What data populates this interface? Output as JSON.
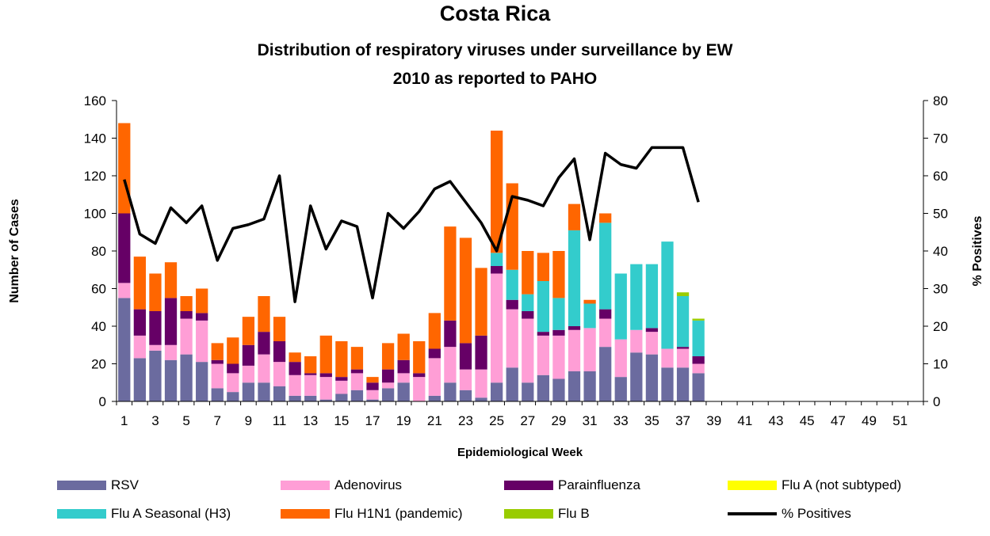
{
  "title": "Costa Rica",
  "subtitle_line1": "Distribution of respiratory viruses under surveillance by EW",
  "subtitle_line2": "2010 as reported to PAHO",
  "colors": {
    "RSV": "#6b6b9f",
    "Adenovirus": "#ff9ed6",
    "Parainfluenza": "#660066",
    "FluA_not_subtyped": "#ffff00",
    "FluA_H3": "#33cccc",
    "FluH1N1": "#ff6600",
    "FluB": "#99cc00",
    "line": "#000000"
  },
  "legend": [
    {
      "key": "RSV",
      "label": "RSV",
      "kind": "box"
    },
    {
      "key": "Adenovirus",
      "label": "Adenovirus",
      "kind": "box"
    },
    {
      "key": "Parainfluenza",
      "label": "Parainfluenza",
      "kind": "box"
    },
    {
      "key": "FluA_not_subtyped",
      "label": "Flu A (not subtyped)",
      "kind": "box"
    },
    {
      "key": "FluA_H3",
      "label": "Flu A Seasonal (H3)",
      "kind": "box"
    },
    {
      "key": "FluH1N1",
      "label": "Flu H1N1 (pandemic)",
      "kind": "box"
    },
    {
      "key": "FluB",
      "label": "Flu B",
      "kind": "box"
    },
    {
      "key": "line",
      "label": "% Positives",
      "kind": "line"
    }
  ],
  "chart_data": {
    "type": "bar",
    "stacked": true,
    "xlabel": "Epidemiological Week",
    "ylabel_left": "Number of Cases",
    "ylabel_right": "% Positives",
    "ylim_left": [
      0,
      160
    ],
    "ylim_right": [
      0,
      80
    ],
    "yticks_left": [
      0,
      20,
      40,
      60,
      80,
      100,
      120,
      140,
      160
    ],
    "yticks_right": [
      0,
      10,
      20,
      30,
      40,
      50,
      60,
      70,
      80
    ],
    "x_tick_labels": [
      "1",
      "3",
      "5",
      "7",
      "9",
      "11",
      "13",
      "15",
      "17",
      "19",
      "21",
      "23",
      "25",
      "27",
      "29",
      "31",
      "33",
      "35",
      "37",
      "39",
      "41",
      "43",
      "45",
      "47",
      "49",
      "51"
    ],
    "weeks": [
      1,
      2,
      3,
      4,
      5,
      6,
      7,
      8,
      9,
      10,
      11,
      12,
      13,
      14,
      15,
      16,
      17,
      18,
      19,
      20,
      21,
      22,
      23,
      24,
      25,
      26,
      27,
      28,
      29,
      30,
      31,
      32,
      33,
      34,
      35,
      36,
      37,
      38,
      39,
      40,
      41,
      42,
      43,
      44,
      45,
      46,
      47,
      48,
      49,
      50,
      51,
      52
    ],
    "series": [
      {
        "name": "RSV",
        "key": "RSV",
        "values": [
          55,
          23,
          27,
          22,
          25,
          21,
          7,
          5,
          10,
          10,
          8,
          3,
          3,
          1,
          4,
          6,
          1,
          7,
          10,
          0,
          3,
          10,
          6,
          2,
          10,
          18,
          10,
          14,
          12,
          16,
          16,
          29,
          13,
          26,
          25,
          18,
          18,
          15,
          0,
          0,
          0,
          0,
          0,
          0,
          0,
          0,
          0,
          0,
          0,
          0,
          0,
          0
        ]
      },
      {
        "name": "Adenovirus",
        "key": "Adenovirus",
        "values": [
          8,
          12,
          3,
          8,
          19,
          22,
          13,
          10,
          9,
          15,
          13,
          11,
          11,
          12,
          7,
          9,
          5,
          3,
          5,
          13,
          20,
          19,
          11,
          15,
          58,
          31,
          34,
          21,
          23,
          22,
          23,
          15,
          20,
          12,
          12,
          10,
          10,
          5,
          0,
          0,
          0,
          0,
          0,
          0,
          0,
          0,
          0,
          0,
          0,
          0,
          0,
          0
        ]
      },
      {
        "name": "Parainfluenza",
        "key": "Parainfluenza",
        "values": [
          37,
          14,
          18,
          25,
          4,
          4,
          2,
          5,
          11,
          12,
          11,
          7,
          1,
          2,
          2,
          2,
          4,
          7,
          7,
          2,
          5,
          14,
          14,
          18,
          4,
          5,
          4,
          2,
          3,
          2,
          0,
          5,
          0,
          0,
          2,
          0,
          1,
          4,
          0,
          0,
          0,
          0,
          0,
          0,
          0,
          0,
          0,
          0,
          0,
          0,
          0,
          0
        ]
      },
      {
        "name": "Flu A (not subtyped)",
        "key": "FluA_not_subtyped",
        "values": [
          0,
          0,
          0,
          0,
          0,
          0,
          0,
          0,
          0,
          0,
          0,
          0,
          0,
          0,
          0,
          0,
          0,
          0,
          0,
          0,
          0,
          0,
          0,
          0,
          0,
          0,
          0,
          0,
          0,
          0,
          0,
          0,
          0,
          0,
          0,
          0,
          0,
          0,
          0,
          0,
          0,
          0,
          0,
          0,
          0,
          0,
          0,
          0,
          0,
          0,
          0,
          0
        ]
      },
      {
        "name": "Flu A Seasonal (H3)",
        "key": "FluA_H3",
        "values": [
          0,
          0,
          0,
          0,
          0,
          0,
          0,
          0,
          0,
          0,
          0,
          0,
          0,
          0,
          0,
          0,
          0,
          0,
          0,
          0,
          0,
          0,
          0,
          0,
          7,
          16,
          9,
          27,
          17,
          51,
          13,
          46,
          35,
          35,
          34,
          57,
          27,
          19,
          0,
          0,
          0,
          0,
          0,
          0,
          0,
          0,
          0,
          0,
          0,
          0,
          0,
          0
        ]
      },
      {
        "name": "Flu H1N1 (pandemic)",
        "key": "FluH1N1",
        "values": [
          48,
          28,
          20,
          19,
          8,
          13,
          9,
          14,
          15,
          19,
          13,
          5,
          9,
          20,
          19,
          12,
          3,
          14,
          14,
          17,
          19,
          50,
          56,
          36,
          65,
          46,
          23,
          15,
          25,
          14,
          2,
          5,
          0,
          0,
          0,
          0,
          0,
          0,
          0,
          0,
          0,
          0,
          0,
          0,
          0,
          0,
          0,
          0,
          0,
          0,
          0,
          0
        ]
      },
      {
        "name": "Flu B",
        "key": "FluB",
        "values": [
          0,
          0,
          0,
          0,
          0,
          0,
          0,
          0,
          0,
          0,
          0,
          0,
          0,
          0,
          0,
          0,
          0,
          0,
          0,
          0,
          0,
          0,
          0,
          0,
          0,
          0,
          0,
          0,
          0,
          0,
          0,
          0,
          0,
          0,
          0,
          0,
          2,
          1,
          0,
          0,
          0,
          0,
          0,
          0,
          0,
          0,
          0,
          0,
          0,
          0,
          0,
          0
        ]
      }
    ],
    "line": {
      "name": "% Positives",
      "axis": "right",
      "values": [
        59,
        44.5,
        42,
        51.5,
        47.5,
        52,
        37.5,
        46,
        47,
        48.5,
        60,
        26.5,
        52,
        40.5,
        48,
        46.5,
        27.5,
        50,
        46,
        50.5,
        56.5,
        58.5,
        53,
        47.5,
        40,
        54.5,
        53.5,
        52,
        59.5,
        64.5,
        43,
        66,
        63,
        62,
        67.5,
        67.5,
        67.5,
        53
      ]
    },
    "grid": false,
    "legend_position": "bottom"
  }
}
